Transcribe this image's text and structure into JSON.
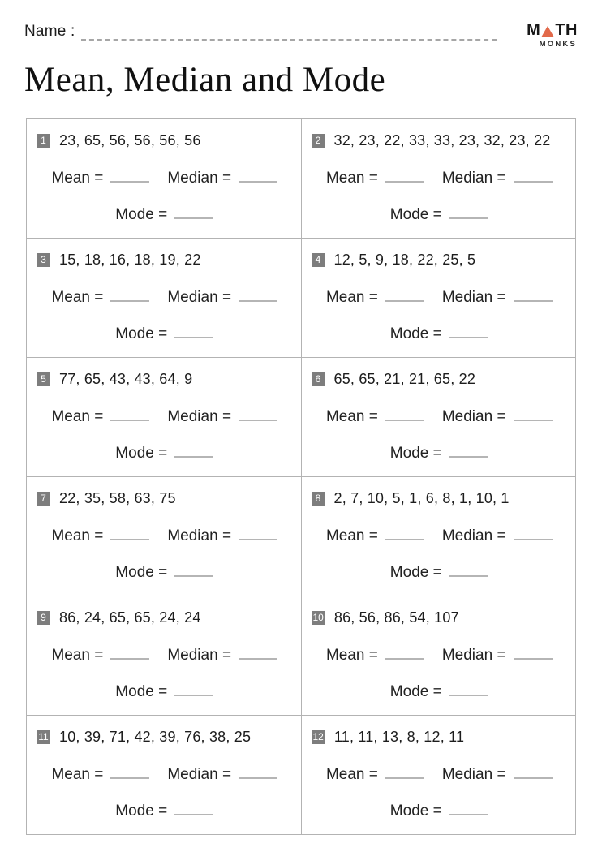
{
  "page": {
    "name_label": "Name :",
    "title": "Mean, Median and Mode"
  },
  "logo": {
    "top_left": "M",
    "top_right": "TH",
    "bottom": "MONKS",
    "triangle_color": "#E2694A"
  },
  "labels": {
    "mean": "Mean =",
    "median": "Median =",
    "mode": "Mode ="
  },
  "problems": [
    {
      "number": "1",
      "values": "23, 65, 56, 56, 56, 56"
    },
    {
      "number": "2",
      "values": "32, 23, 22, 33, 33, 23, 32, 23, 22"
    },
    {
      "number": "3",
      "values": "15, 18, 16, 18, 19, 22"
    },
    {
      "number": "4",
      "values": "12, 5, 9, 18, 22, 25, 5"
    },
    {
      "number": "5",
      "values": "77, 65, 43, 43, 64, 9"
    },
    {
      "number": "6",
      "values": "65, 65, 21, 21, 65, 22"
    },
    {
      "number": "7",
      "values": "22, 35, 58, 63, 75"
    },
    {
      "number": "8",
      "values": "2, 7, 10, 5, 1, 6, 8, 1, 10, 1"
    },
    {
      "number": "9",
      "values": "86, 24, 65, 65, 24, 24"
    },
    {
      "number": "10",
      "values": "86, 56, 86, 54, 107"
    },
    {
      "number": "11",
      "values": "10, 39, 71, 42, 39, 76, 38, 25"
    },
    {
      "number": "12",
      "values": "11, 11, 13, 8, 12, 11"
    }
  ]
}
